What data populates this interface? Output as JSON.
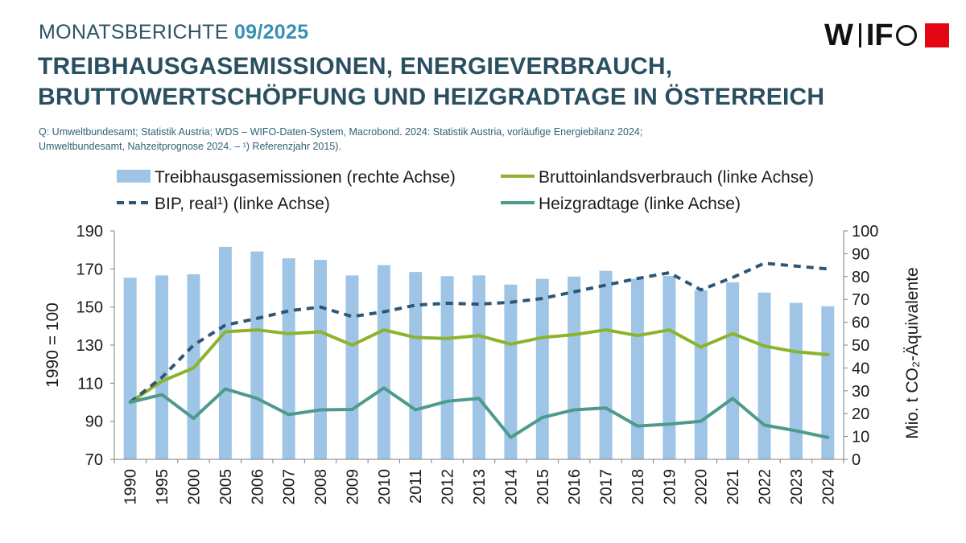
{
  "header": {
    "report_prefix": "MONATSBERICHTE",
    "report_issue": "09/2025",
    "title_line1": "TREIBHAUSGASEMISSIONEN, ENERGIEVERBRAUCH,",
    "title_line2": "BRUTTOWERTSCHÖPFUNG UND HEIZGRADTAGE IN ÖSTERREICH",
    "source_line1": "Q: Umweltbundesamt; Statistik Austria; WDS – WIFO-Daten-System, Macrobond. 2024: Statistik Austria, vorläufige Energiebilanz 2024;",
    "source_line2": "Umweltbundesamt, Nahzeitprognose 2024. – ¹) Referenzjahr 2015).",
    "logo_text": "WIFO"
  },
  "colors": {
    "bars": "#9ec5e6",
    "bip": "#2f5675",
    "bruttoinland": "#8db32e",
    "heizgradtage": "#4e9a8c",
    "logo_red": "#e30613"
  },
  "chart_data": {
    "type": "bar",
    "categories": [
      "1990",
      "1995",
      "2000",
      "2005",
      "2006",
      "2007",
      "2008",
      "2009",
      "2010",
      "2011",
      "2012",
      "2013",
      "2014",
      "2015",
      "2016",
      "2017",
      "2018",
      "2019",
      "2020",
      "2021",
      "2022",
      "2023",
      "2024"
    ],
    "legend": [
      {
        "label": "Treibhausgasemissionen (rechte Achse)",
        "style": "bar"
      },
      {
        "label": "Bruttoinlandsverbrauch (linke Achse)",
        "style": "line"
      },
      {
        "label": "BIP, real¹) (linke Achse)",
        "style": "dashed"
      },
      {
        "label": "Heizgradtage (linke Achse)",
        "style": "line"
      }
    ],
    "series": [
      {
        "name": "Treibhausgasemissionen (rechte Achse)",
        "type": "bar",
        "axis": "right",
        "values": [
          79.5,
          80.5,
          81.0,
          93.0,
          91.0,
          88.0,
          87.3,
          80.5,
          85.0,
          82.0,
          80.2,
          80.5,
          76.5,
          79.0,
          80.0,
          82.5,
          79.0,
          80.3,
          74.0,
          77.5,
          73.0,
          68.5,
          67.0
        ]
      },
      {
        "name": "Bruttoinlandsverbrauch (linke Achse)",
        "type": "line",
        "axis": "left",
        "values": [
          100,
          111,
          118,
          137,
          138,
          136,
          137,
          130,
          138,
          134,
          133.5,
          135,
          130.5,
          134,
          135.5,
          138,
          135,
          138,
          129,
          136,
          129.5,
          126.5,
          125
        ]
      },
      {
        "name": "BIP, real¹) (linke Achse)",
        "type": "dashed",
        "axis": "left",
        "values": [
          100,
          113,
          130,
          140.5,
          144,
          148,
          150,
          145,
          147.5,
          151,
          152,
          151.5,
          152.5,
          154.5,
          158,
          161.5,
          165,
          168,
          159,
          165.5,
          173,
          171.5,
          170
        ]
      },
      {
        "name": "Heizgradtage (linke Achse)",
        "type": "line",
        "axis": "left",
        "values": [
          100,
          104,
          91.5,
          107,
          102,
          93.5,
          96,
          96.2,
          107.5,
          96,
          100.5,
          102,
          81.5,
          92,
          96,
          97,
          87.5,
          88.5,
          90,
          102,
          88,
          85,
          81.5
        ]
      }
    ],
    "y_left": {
      "label": "1990 = 100",
      "min": 70,
      "max": 190,
      "ticks": [
        "190",
        "170",
        "150",
        "130",
        "110",
        "90",
        "70"
      ]
    },
    "y_right": {
      "label": "Mio.  t CO₂-Äquivalente",
      "min": 0,
      "max": 100,
      "ticks": [
        "100",
        "90",
        "80",
        "70",
        "60",
        "50",
        "40",
        "30",
        "20",
        "10",
        "0"
      ]
    },
    "gridlines": false,
    "legend_position": "top"
  }
}
